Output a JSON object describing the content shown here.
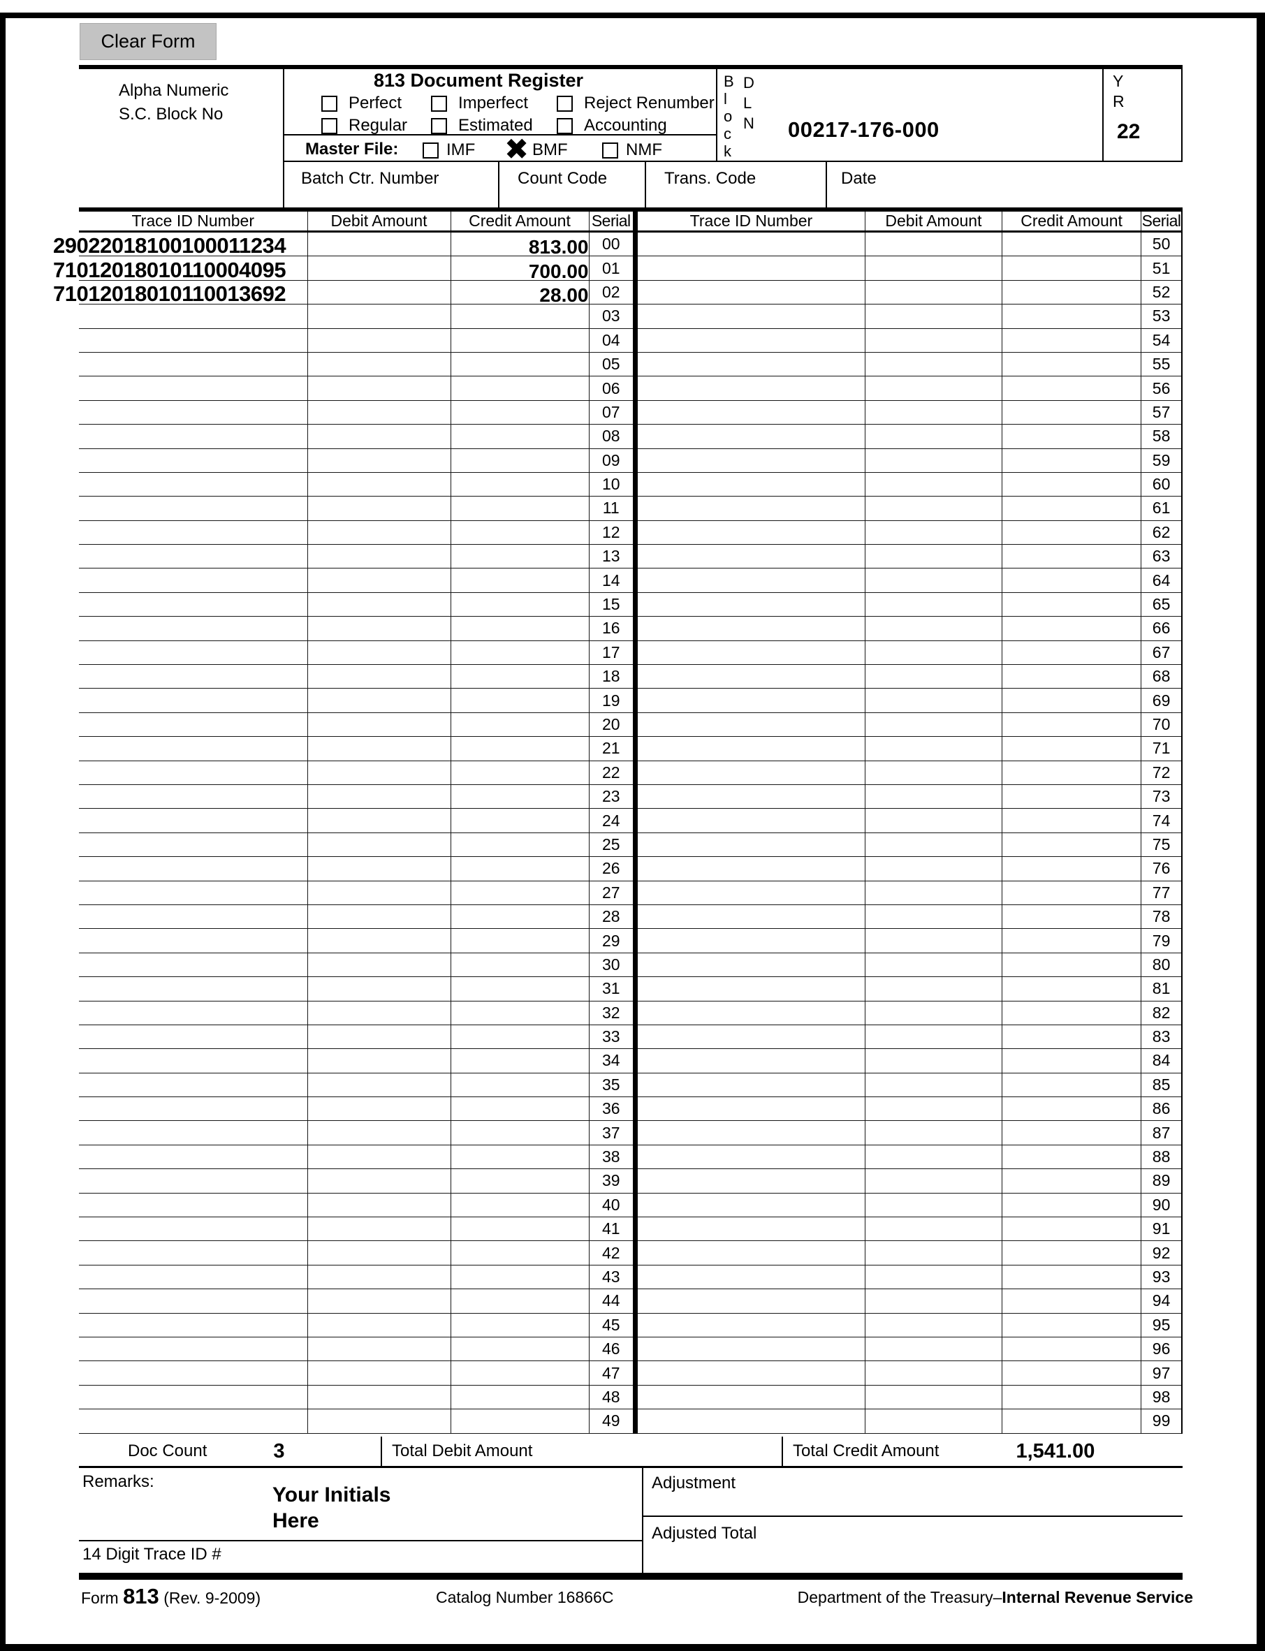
{
  "colors": {
    "paper": "#ffffff",
    "ink": "#000000",
    "button_bg": "#c3c3c3"
  },
  "button": {
    "clear_form": "Clear Form"
  },
  "header": {
    "alpha_line1": "Alpha Numeric",
    "alpha_line2": "S.C. Block No",
    "title": "813 Document Register",
    "doc_type_checkboxes": [
      {
        "label": "Perfect",
        "checked": false
      },
      {
        "label": "Imperfect",
        "checked": false
      },
      {
        "label": "Reject Renumber",
        "checked": false
      },
      {
        "label": "Regular",
        "checked": false
      },
      {
        "label": "Estimated",
        "checked": false
      },
      {
        "label": "Accounting",
        "checked": false
      }
    ],
    "master_file_label": "Master File:",
    "master_file_options": [
      {
        "label": "IMF",
        "checked": false
      },
      {
        "label": "BMF",
        "checked": true
      },
      {
        "label": "NMF",
        "checked": false
      }
    ],
    "block_label": "Block",
    "dln_label": "DLN",
    "dln_value": "00217-176-000",
    "yr_label": "YR",
    "yr_value": "22",
    "batch_ctr_label": "Batch Ctr. Number",
    "count_code_label": "Count Code",
    "trans_code_label": "Trans. Code",
    "date_label": "Date"
  },
  "table": {
    "headers": [
      "Trace ID Number",
      "Debit Amount",
      "Credit Amount",
      "Serial"
    ],
    "left_rows": [
      [
        "29022018100100011234",
        "",
        "813.00",
        "00"
      ],
      [
        "71012018010110004095",
        "",
        "700.00",
        "01"
      ],
      [
        "71012018010110013692",
        "",
        "28.00",
        "02"
      ],
      [
        "",
        "",
        "",
        "03"
      ],
      [
        "",
        "",
        "",
        "04"
      ],
      [
        "",
        "",
        "",
        "05"
      ],
      [
        "",
        "",
        "",
        "06"
      ],
      [
        "",
        "",
        "",
        "07"
      ],
      [
        "",
        "",
        "",
        "08"
      ],
      [
        "",
        "",
        "",
        "09"
      ],
      [
        "",
        "",
        "",
        "10"
      ],
      [
        "",
        "",
        "",
        "11"
      ],
      [
        "",
        "",
        "",
        "12"
      ],
      [
        "",
        "",
        "",
        "13"
      ],
      [
        "",
        "",
        "",
        "14"
      ],
      [
        "",
        "",
        "",
        "15"
      ],
      [
        "",
        "",
        "",
        "16"
      ],
      [
        "",
        "",
        "",
        "17"
      ],
      [
        "",
        "",
        "",
        "18"
      ],
      [
        "",
        "",
        "",
        "19"
      ],
      [
        "",
        "",
        "",
        "20"
      ],
      [
        "",
        "",
        "",
        "21"
      ],
      [
        "",
        "",
        "",
        "22"
      ],
      [
        "",
        "",
        "",
        "23"
      ],
      [
        "",
        "",
        "",
        "24"
      ],
      [
        "",
        "",
        "",
        "25"
      ],
      [
        "",
        "",
        "",
        "26"
      ],
      [
        "",
        "",
        "",
        "27"
      ],
      [
        "",
        "",
        "",
        "28"
      ],
      [
        "",
        "",
        "",
        "29"
      ],
      [
        "",
        "",
        "",
        "30"
      ],
      [
        "",
        "",
        "",
        "31"
      ],
      [
        "",
        "",
        "",
        "32"
      ],
      [
        "",
        "",
        "",
        "33"
      ],
      [
        "",
        "",
        "",
        "34"
      ],
      [
        "",
        "",
        "",
        "35"
      ],
      [
        "",
        "",
        "",
        "36"
      ],
      [
        "",
        "",
        "",
        "37"
      ],
      [
        "",
        "",
        "",
        "38"
      ],
      [
        "",
        "",
        "",
        "39"
      ],
      [
        "",
        "",
        "",
        "40"
      ],
      [
        "",
        "",
        "",
        "41"
      ],
      [
        "",
        "",
        "",
        "42"
      ],
      [
        "",
        "",
        "",
        "43"
      ],
      [
        "",
        "",
        "",
        "44"
      ],
      [
        "",
        "",
        "",
        "45"
      ],
      [
        "",
        "",
        "",
        "46"
      ],
      [
        "",
        "",
        "",
        "47"
      ],
      [
        "",
        "",
        "",
        "48"
      ],
      [
        "",
        "",
        "",
        "49"
      ]
    ],
    "right_rows": [
      [
        "",
        "",
        "",
        "50"
      ],
      [
        "",
        "",
        "",
        "51"
      ],
      [
        "",
        "",
        "",
        "52"
      ],
      [
        "",
        "",
        "",
        "53"
      ],
      [
        "",
        "",
        "",
        "54"
      ],
      [
        "",
        "",
        "",
        "55"
      ],
      [
        "",
        "",
        "",
        "56"
      ],
      [
        "",
        "",
        "",
        "57"
      ],
      [
        "",
        "",
        "",
        "58"
      ],
      [
        "",
        "",
        "",
        "59"
      ],
      [
        "",
        "",
        "",
        "60"
      ],
      [
        "",
        "",
        "",
        "61"
      ],
      [
        "",
        "",
        "",
        "62"
      ],
      [
        "",
        "",
        "",
        "63"
      ],
      [
        "",
        "",
        "",
        "64"
      ],
      [
        "",
        "",
        "",
        "65"
      ],
      [
        "",
        "",
        "",
        "66"
      ],
      [
        "",
        "",
        "",
        "67"
      ],
      [
        "",
        "",
        "",
        "68"
      ],
      [
        "",
        "",
        "",
        "69"
      ],
      [
        "",
        "",
        "",
        "70"
      ],
      [
        "",
        "",
        "",
        "71"
      ],
      [
        "",
        "",
        "",
        "72"
      ],
      [
        "",
        "",
        "",
        "73"
      ],
      [
        "",
        "",
        "",
        "74"
      ],
      [
        "",
        "",
        "",
        "75"
      ],
      [
        "",
        "",
        "",
        "76"
      ],
      [
        "",
        "",
        "",
        "77"
      ],
      [
        "",
        "",
        "",
        "78"
      ],
      [
        "",
        "",
        "",
        "79"
      ],
      [
        "",
        "",
        "",
        "80"
      ],
      [
        "",
        "",
        "",
        "81"
      ],
      [
        "",
        "",
        "",
        "82"
      ],
      [
        "",
        "",
        "",
        "83"
      ],
      [
        "",
        "",
        "",
        "84"
      ],
      [
        "",
        "",
        "",
        "85"
      ],
      [
        "",
        "",
        "",
        "86"
      ],
      [
        "",
        "",
        "",
        "87"
      ],
      [
        "",
        "",
        "",
        "88"
      ],
      [
        "",
        "",
        "",
        "89"
      ],
      [
        "",
        "",
        "",
        "90"
      ],
      [
        "",
        "",
        "",
        "91"
      ],
      [
        "",
        "",
        "",
        "92"
      ],
      [
        "",
        "",
        "",
        "93"
      ],
      [
        "",
        "",
        "",
        "94"
      ],
      [
        "",
        "",
        "",
        "95"
      ],
      [
        "",
        "",
        "",
        "96"
      ],
      [
        "",
        "",
        "",
        "97"
      ],
      [
        "",
        "",
        "",
        "98"
      ],
      [
        "",
        "",
        "",
        "99"
      ]
    ]
  },
  "bottom": {
    "doc_count_label": "Doc Count",
    "doc_count_value": "3",
    "total_debit_label": "Total Debit Amount",
    "total_debit_value": "",
    "total_credit_label": "Total Credit Amount",
    "total_credit_value": "1,541.00",
    "remarks_label": "Remarks:",
    "remarks_value_line1": "Your Initials",
    "remarks_value_line2": "Here",
    "adjustment_label": "Adjustment",
    "adjusted_total_label": "Adjusted Total",
    "trace_id_label": "14 Digit Trace ID #"
  },
  "footer": {
    "form_word": "Form",
    "form_number": "813",
    "form_revision": "(Rev. 9-2009)",
    "catalog": "Catalog Number 16866C",
    "department": "Department of the Treasury–",
    "agency": "Internal Revenue Service"
  }
}
